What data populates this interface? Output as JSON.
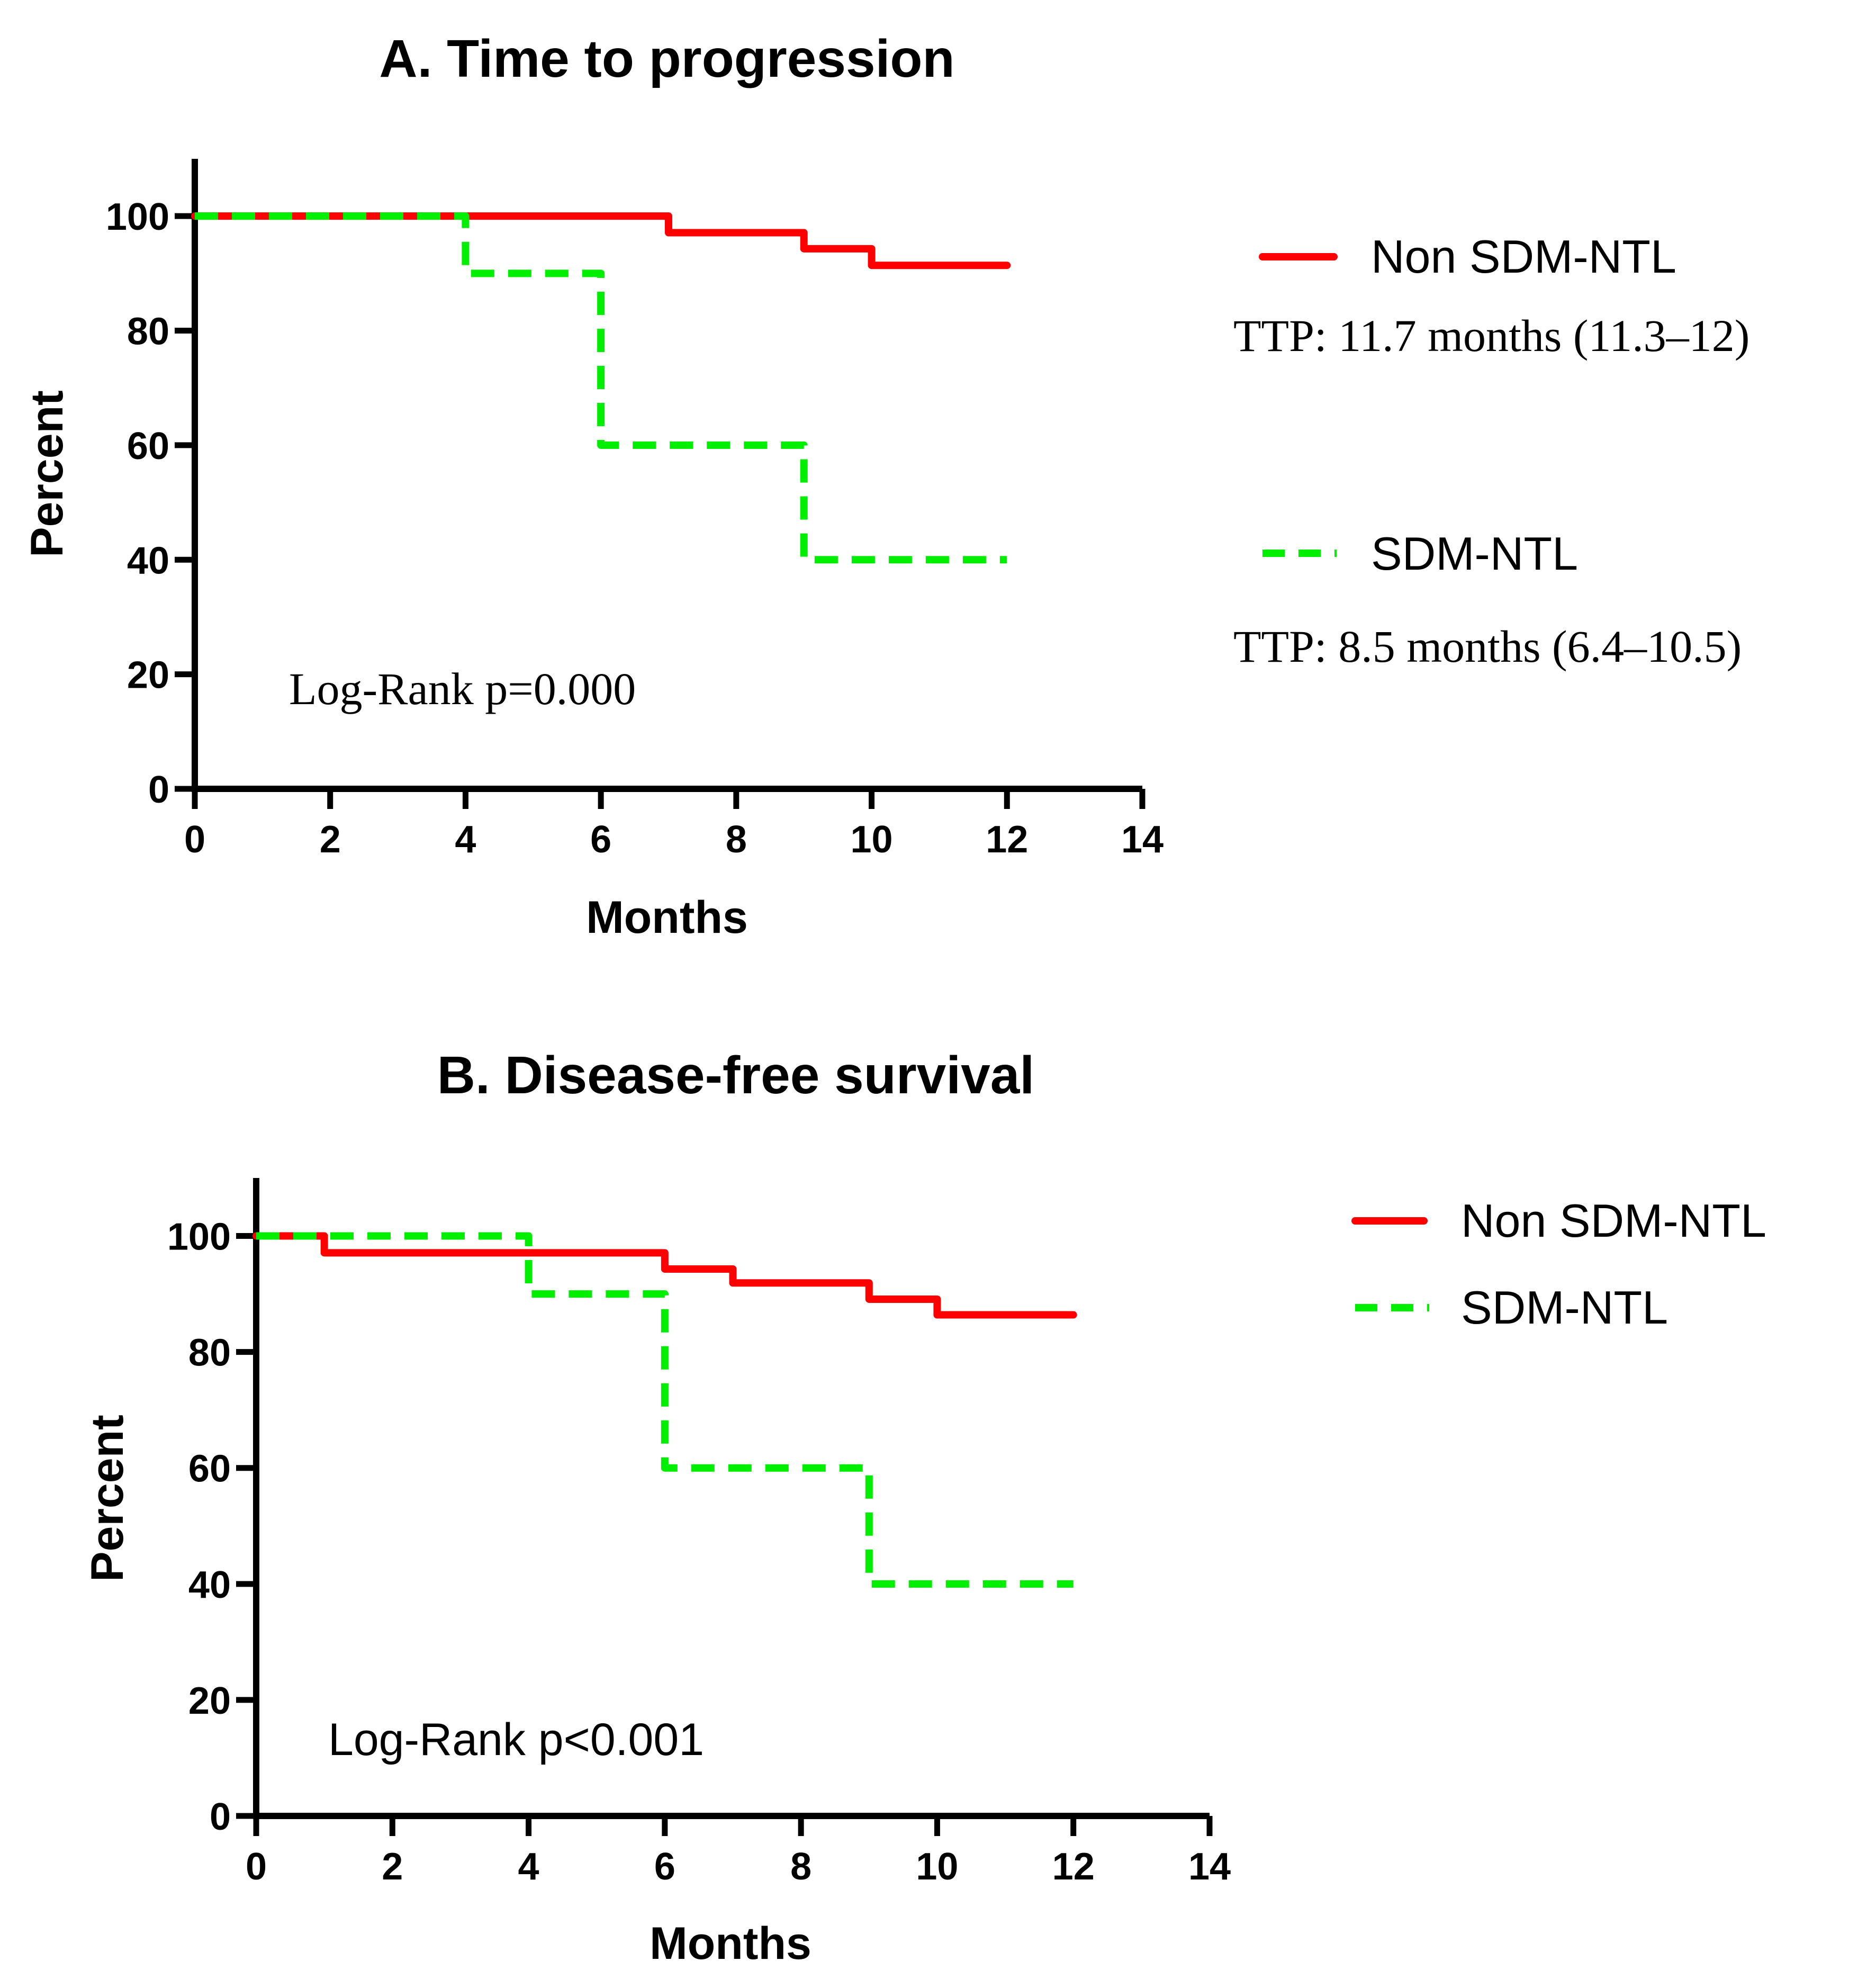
{
  "chart_data": [
    {
      "type": "line",
      "title": "A. Time to progression",
      "xlabel": "Months",
      "ylabel": "Percent",
      "xlim": [
        0,
        14
      ],
      "ylim": [
        0,
        110
      ],
      "x_ticks": [
        0,
        2,
        4,
        6,
        8,
        10,
        12,
        14
      ],
      "y_ticks": [
        0,
        20,
        40,
        60,
        80,
        100
      ],
      "x_tick_labels": [
        "0",
        "2",
        "4",
        "6",
        "8",
        "10",
        "12",
        "14"
      ],
      "y_tick_labels": [
        "0",
        "20",
        "40",
        "60",
        "80",
        "100"
      ],
      "step": true,
      "grid": false,
      "legend_position": "right",
      "series": [
        {
          "name": "Non SDM-NTL",
          "color": "#ff0000",
          "style": "solid",
          "note": "TTP: 11.7 months (11.3–12)",
          "x": [
            0,
            7,
            9,
            10,
            12
          ],
          "y": [
            100,
            97.1,
            94.3,
            91.4,
            91.4
          ]
        },
        {
          "name": "SDM-NTL",
          "color": "#00ee00",
          "style": "dashed",
          "note": "TTP: 8.5 months (6.4–10.5)",
          "x": [
            4,
            6,
            9,
            12
          ],
          "y": [
            90,
            60,
            40,
            40
          ],
          "start_x": 0,
          "start_y": 100
        }
      ],
      "annotation": "Log-Rank p=0.000"
    },
    {
      "type": "line",
      "title": "B. Disease-free survival",
      "xlabel": "Months",
      "ylabel": "Percent",
      "xlim": [
        0,
        14
      ],
      "ylim": [
        0,
        110
      ],
      "x_ticks": [
        0,
        2,
        4,
        6,
        8,
        10,
        12,
        14
      ],
      "y_ticks": [
        0,
        20,
        40,
        60,
        80,
        100
      ],
      "x_tick_labels": [
        "0",
        "2",
        "4",
        "6",
        "8",
        "10",
        "12",
        "14"
      ],
      "y_tick_labels": [
        "0",
        "20",
        "40",
        "60",
        "80",
        "100"
      ],
      "step": true,
      "grid": false,
      "legend_position": "top-right",
      "series": [
        {
          "name": "Non SDM-NTL",
          "color": "#ff0000",
          "style": "solid",
          "x": [
            1,
            6,
            7,
            9,
            10,
            12
          ],
          "y": [
            97.1,
            94.3,
            91.9,
            89.1,
            86.4,
            86.4
          ],
          "start_x": 0,
          "start_y": 100
        },
        {
          "name": "SDM-NTL",
          "color": "#00ee00",
          "style": "dashed",
          "x": [
            4,
            6,
            9,
            12
          ],
          "y": [
            90,
            60,
            40,
            40
          ],
          "start_x": 0,
          "start_y": 100
        }
      ],
      "annotation": "Log-Rank p<0.001"
    }
  ]
}
